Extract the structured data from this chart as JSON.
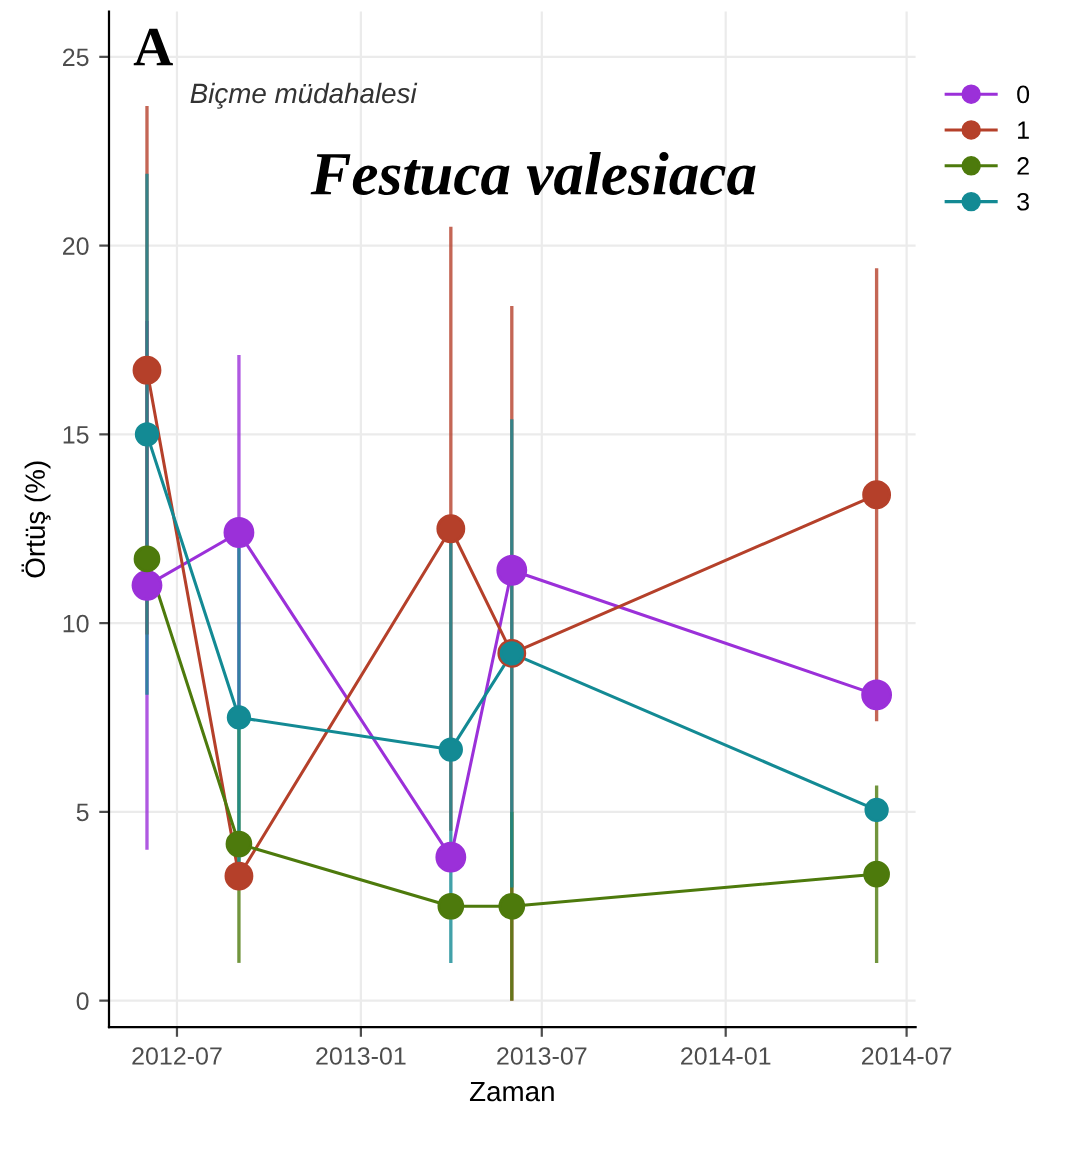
{
  "chart_data": {
    "type": "line",
    "title": "A",
    "xlabel": "Zaman",
    "ylabel": "Örtüş (%)",
    "annotations": [
      "Biçme müdahalesi",
      "Festuca valesiaca"
    ],
    "x": [
      "2012-06-01",
      "2012-09-01",
      "2013-04-01",
      "2013-06-01",
      "2014-06-01"
    ],
    "series": [
      {
        "name": "0",
        "color": "#9b30d9",
        "values": [
          11.0,
          12.4,
          3.8,
          11.4,
          8.1
        ],
        "errors": [
          [
            4.0,
            18.0
          ],
          [
            7.7,
            17.1
          ],
          null,
          null,
          null
        ]
      },
      {
        "name": "1",
        "color": "#b5402a",
        "values": [
          16.7,
          3.3,
          12.5,
          9.2,
          13.4
        ],
        "errors": [
          [
            9.7,
            23.7
          ],
          null,
          [
            4.5,
            20.5
          ],
          [
            0.0,
            18.4
          ],
          [
            7.4,
            19.4
          ]
        ]
      },
      {
        "name": "2",
        "color": "#4d7a0c",
        "values": [
          11.7,
          4.15,
          2.5,
          2.5,
          3.35
        ],
        "errors": [
          null,
          [
            1.0,
            7.3
          ],
          null,
          [
            0.0,
            5.0
          ],
          [
            1.0,
            5.7
          ]
        ]
      },
      {
        "name": "3",
        "color": "#138a94",
        "values": [
          15.0,
          7.5,
          6.65,
          9.2,
          5.05
        ],
        "errors": [
          [
            8.1,
            21.9
          ],
          [
            3.0,
            12.0
          ],
          [
            1.0,
            12.3
          ],
          [
            3.0,
            15.4
          ],
          null
        ]
      }
    ],
    "xlim": [
      "2012-04-24",
      "2014-07-10"
    ],
    "xticks": [
      {
        "value": "2012-07-01",
        "label": "2012-07"
      },
      {
        "value": "2013-01-01",
        "label": "2013-01"
      },
      {
        "value": "2013-07-01",
        "label": "2013-07"
      },
      {
        "value": "2014-01-01",
        "label": "2014-01"
      },
      {
        "value": "2014-07-01",
        "label": "2014-07"
      }
    ],
    "ylim": [
      -0.7,
      26.2
    ],
    "yticks": [
      0,
      5,
      10,
      15,
      20,
      25
    ],
    "grid": true,
    "legend": "right",
    "marker": "circle",
    "line_style": "solid"
  }
}
